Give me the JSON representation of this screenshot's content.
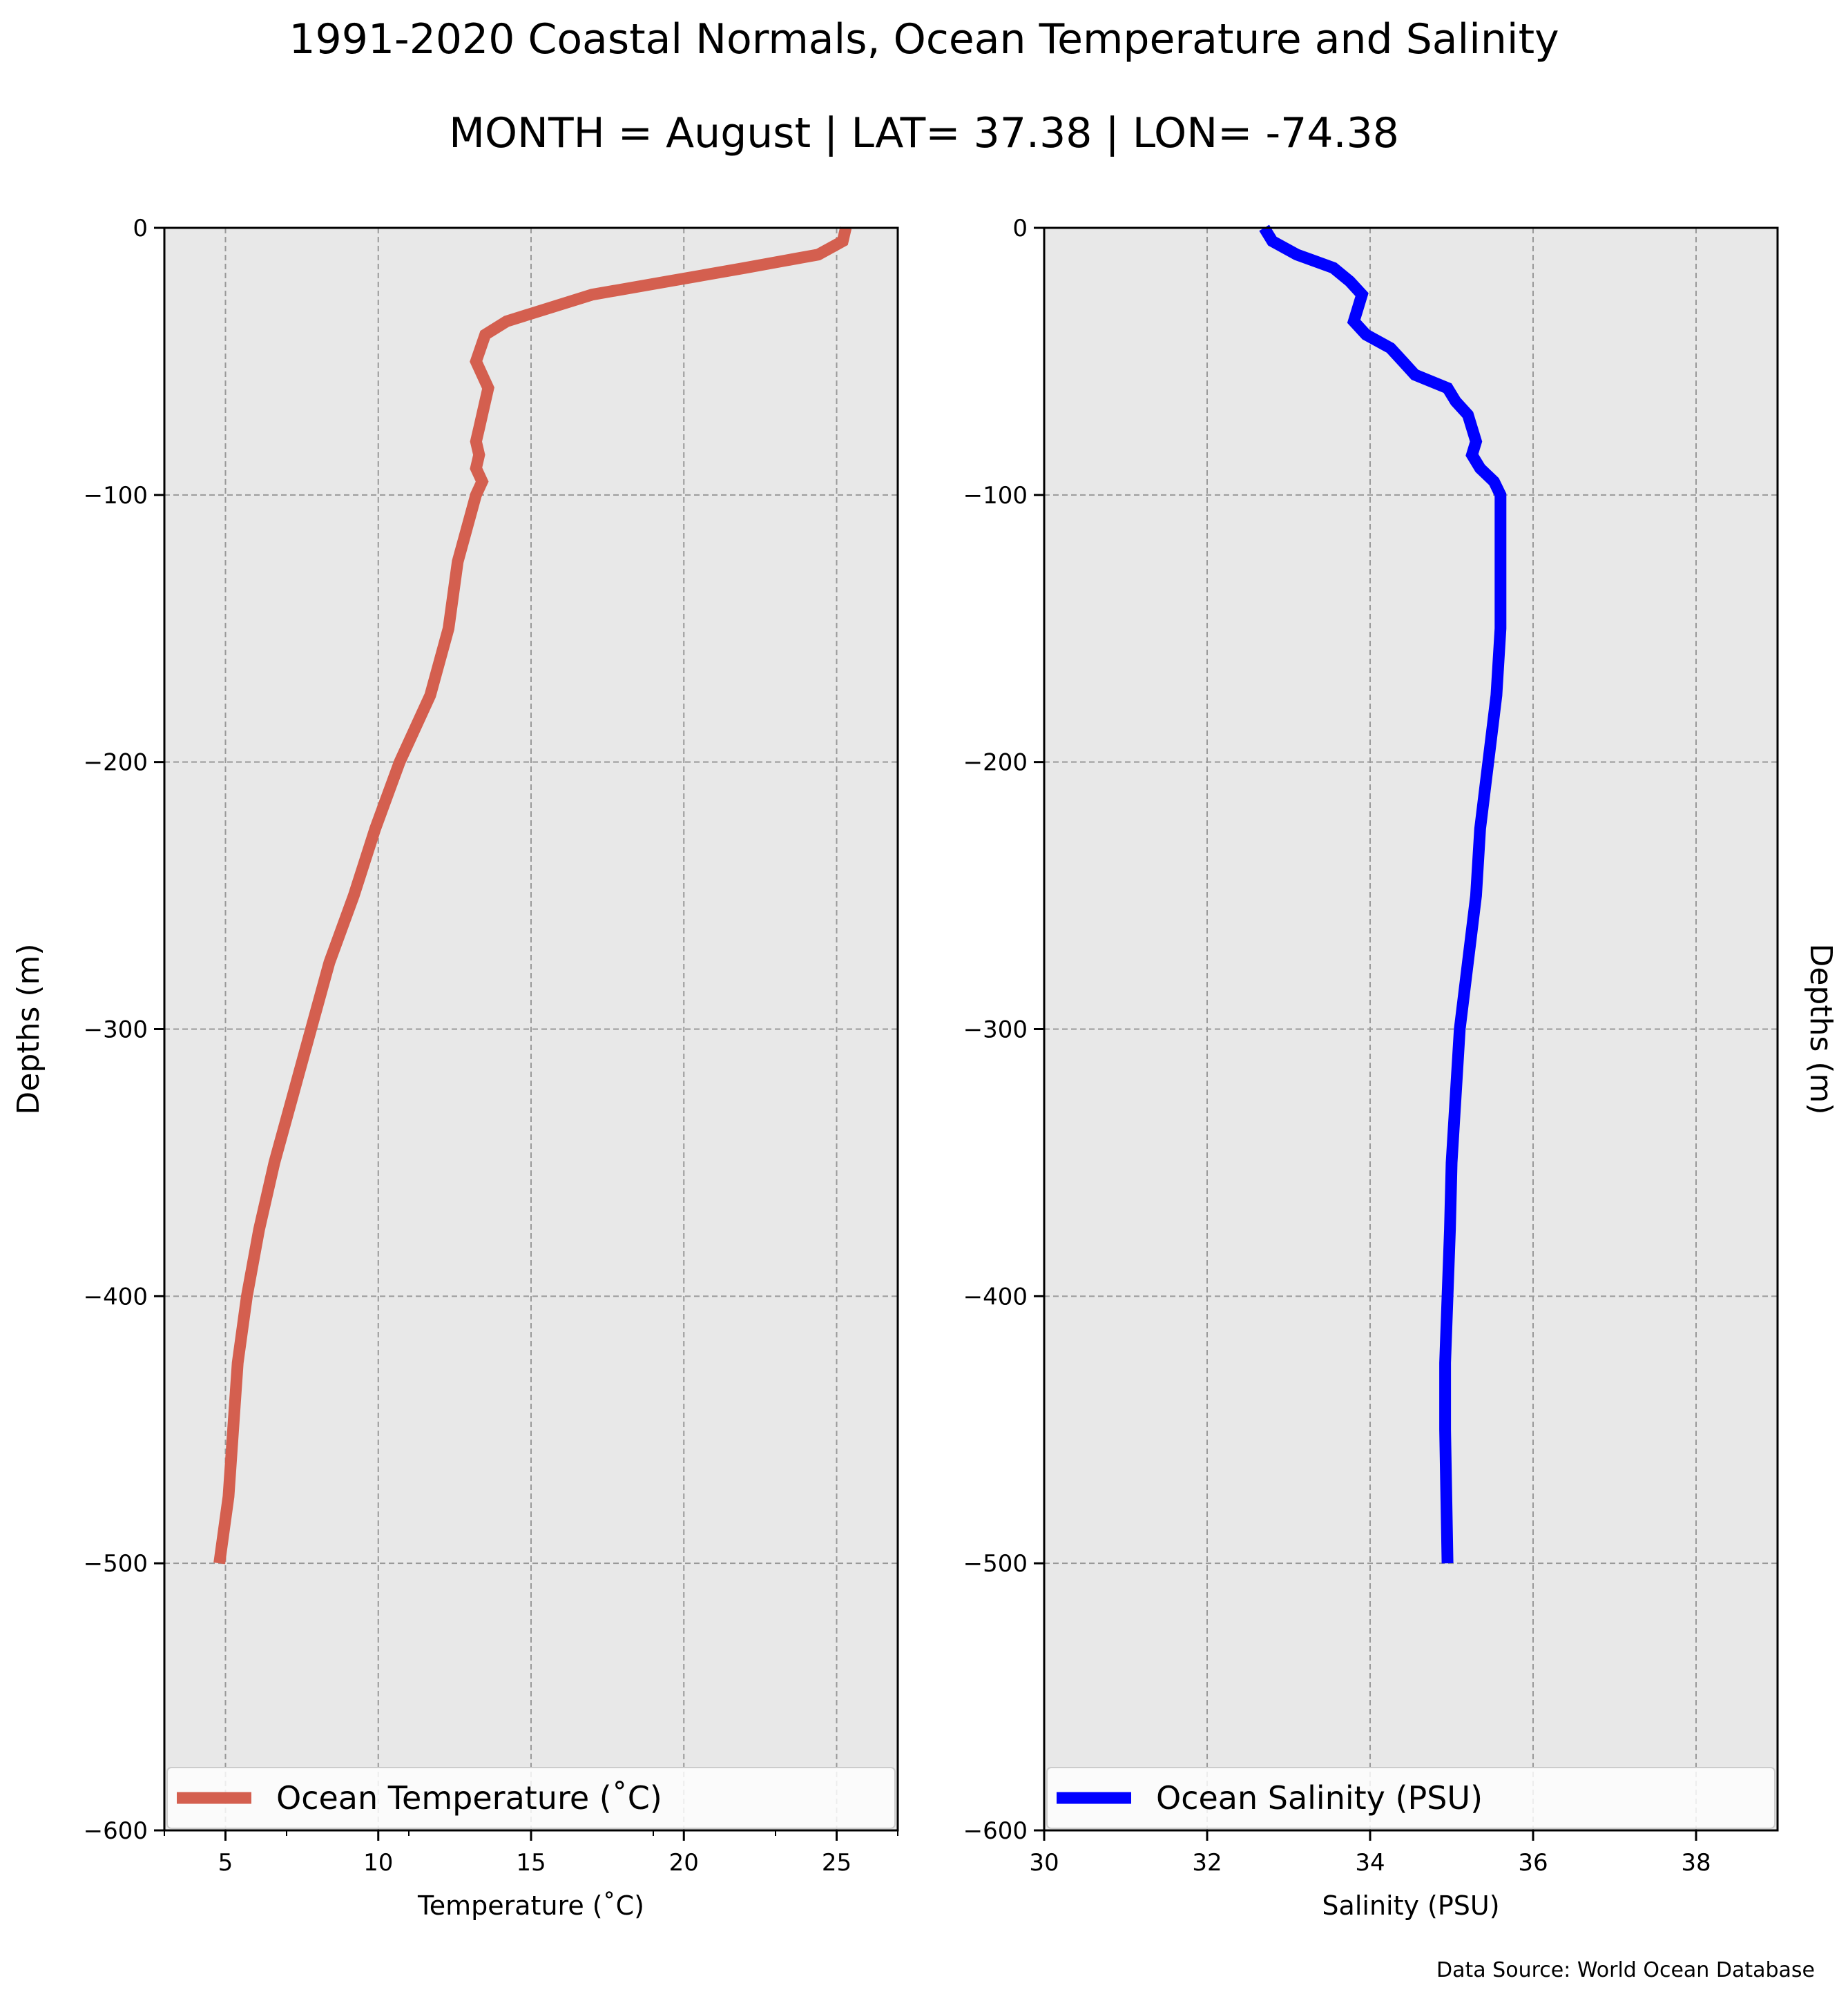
{
  "figure": {
    "title_line1": "1991-2020 Coastal Normals, Ocean Temperature and Salinity",
    "title_line2": "MONTH = August | LAT= 37.38 | LON= -74.38",
    "source": "Data Source: World Ocean Database"
  },
  "colors": {
    "panel_background": "#e8e8e8",
    "grid": "#999999",
    "temperature_line": "#d45f4f",
    "salinity_line": "#0000ff"
  },
  "chart_data": [
    {
      "type": "line",
      "title": "",
      "xlabel": "Temperature (˚C)",
      "ylabel": "Depths (m)",
      "xlim": [
        3,
        27
      ],
      "ylim": [
        -600,
        0
      ],
      "xticks": [
        5,
        10,
        15,
        20,
        25
      ],
      "yticks": [
        0,
        -100,
        -200,
        -300,
        -400,
        -500,
        -600
      ],
      "grid": true,
      "legend": "lower-center",
      "series": [
        {
          "name": "Ocean Temperature (˚C)",
          "color": "#d45f4f",
          "x": [
            25.3,
            25.2,
            24.4,
            22.0,
            19.5,
            17.0,
            14.2,
            13.5,
            13.2,
            13.6,
            13.5,
            13.4,
            13.3,
            13.2,
            13.3,
            13.2,
            13.4,
            13.2,
            12.6,
            12.3,
            11.7,
            10.7,
            9.9,
            9.2,
            8.4,
            7.8,
            7.2,
            6.6,
            6.1,
            5.7,
            5.4,
            5.1,
            4.8
          ],
          "y": [
            0,
            -5,
            -10,
            -15,
            -20,
            -25,
            -35,
            -40,
            -50,
            -60,
            -65,
            -70,
            -75,
            -80,
            -85,
            -90,
            -95,
            -100,
            -125,
            -150,
            -175,
            -200,
            -225,
            -250,
            -275,
            -300,
            -325,
            -350,
            -375,
            -400,
            -425,
            -475,
            -500
          ]
        }
      ]
    },
    {
      "type": "line",
      "title": "",
      "xlabel": "Salinity (PSU)",
      "ylabel": "Depths (m)",
      "xlim": [
        30,
        39
      ],
      "ylim": [
        -600,
        0
      ],
      "xticks": [
        30,
        32,
        34,
        36,
        38
      ],
      "yticks": [
        0,
        -100,
        -200,
        -300,
        -400,
        -500,
        -600
      ],
      "grid": true,
      "legend": "lower-center",
      "series": [
        {
          "name": "Ocean Salinity (PSU)",
          "color": "#0000ff",
          "x": [
            32.7,
            32.8,
            33.1,
            33.55,
            33.75,
            33.9,
            33.85,
            33.8,
            33.95,
            34.25,
            34.4,
            34.55,
            34.95,
            35.05,
            35.2,
            35.25,
            35.3,
            35.25,
            35.35,
            35.52,
            35.6,
            35.6,
            35.6,
            35.55,
            35.45,
            35.35,
            35.3,
            35.2,
            35.1,
            35.05,
            35.0,
            34.98,
            34.95,
            34.92,
            34.92,
            34.95
          ],
          "y": [
            0,
            -5,
            -10,
            -15,
            -20,
            -25,
            -30,
            -35,
            -40,
            -45,
            -50,
            -55,
            -60,
            -65,
            -70,
            -75,
            -80,
            -85,
            -90,
            -95,
            -100,
            -125,
            -150,
            -175,
            -200,
            -225,
            -250,
            -275,
            -300,
            -325,
            -350,
            -375,
            -400,
            -425,
            -450,
            -500
          ]
        }
      ]
    }
  ]
}
